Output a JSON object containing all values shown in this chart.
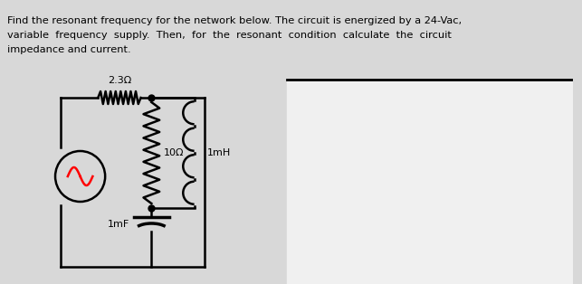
{
  "bg_color": "#d8d8d8",
  "circuit_bg": "#e0e0e0",
  "right_bg": "#f0f0f0",
  "text_color": "#000000",
  "line1": "Find the resonant frequency for the network below. The circuit is energized by a 24-Vac,",
  "line2": "variable  frequency  supply.  Then,  for  the  resonant  condition  calculate  the  circuit",
  "line3": "impedance and current.",
  "label_2ohm": "2.3Ω",
  "label_10ohm": "10Ω",
  "label_1mH": "1mH",
  "label_1mF": "1mF",
  "figsize": [
    6.43,
    3.14
  ],
  "dpi": 100
}
